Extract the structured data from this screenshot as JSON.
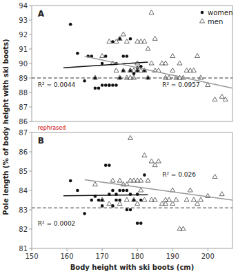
{
  "chart_data": [
    {
      "type": "scatter",
      "ylabel": "Pole length (% of body height with ski boots)",
      "xlim": [
        150,
        207
      ],
      "ylim": [
        86,
        94
      ],
      "yticks": [
        86,
        87,
        88,
        89,
        90,
        91,
        92,
        93,
        94
      ],
      "tick_labels": "y",
      "grid": false,
      "legend": "upper right",
      "series": [
        {
          "name": "women",
          "type": "scatter",
          "marker": "circle",
          "color": "#111111",
          "x": [
            161,
            163,
            165,
            166,
            167,
            168,
            168,
            169,
            170,
            170,
            171,
            171,
            172,
            172,
            173,
            173,
            174,
            174,
            175,
            175,
            176,
            176,
            177,
            178,
            178,
            179,
            180,
            180,
            181,
            182,
            183
          ],
          "values": [
            92.7,
            90.7,
            88.8,
            90.5,
            90.5,
            88.3,
            89.0,
            88.3,
            90.0,
            88.5,
            90.5,
            88.5,
            88.5,
            88.5,
            91.5,
            88.5,
            90.0,
            88.5,
            91.7,
            89.0,
            90.5,
            89.5,
            90.5,
            91.7,
            89.5,
            89.3,
            89.5,
            89.7,
            89.8,
            89.5,
            89.0
          ]
        },
        {
          "name": "men",
          "type": "scatter",
          "marker": "triangle-open",
          "color": "#555555",
          "x": [
            168,
            170,
            172,
            173,
            174,
            174,
            175,
            175,
            176,
            176,
            177,
            177,
            178,
            178,
            178,
            179,
            179,
            180,
            180,
            180,
            181,
            181,
            182,
            182,
            183,
            183,
            184,
            184,
            185,
            185,
            186,
            187,
            188,
            188,
            189,
            190,
            190,
            191,
            192,
            192,
            193,
            194,
            195,
            196,
            197,
            198,
            200,
            202,
            204,
            205
          ],
          "values": [
            89.0,
            90.5,
            91.5,
            90.0,
            91.5,
            89.5,
            91.7,
            89.0,
            92.0,
            89.5,
            91.5,
            89.0,
            89.5,
            89.5,
            89.0,
            89.5,
            89.0,
            91.5,
            90.0,
            89.5,
            91.5,
            89.5,
            91.5,
            89.5,
            91.0,
            89.0,
            93.5,
            90.0,
            91.7,
            89.5,
            89.5,
            90.0,
            90.0,
            89.0,
            89.0,
            90.5,
            89.5,
            89.0,
            90.0,
            89.0,
            89.0,
            89.5,
            89.5,
            89.5,
            90.5,
            89.0,
            88.5,
            87.5,
            87.7,
            87.5
          ]
        },
        {
          "type": "line",
          "color": "#111111",
          "x": [
            159,
            183
          ],
          "values": [
            89.7,
            90.1
          ]
        },
        {
          "type": "line",
          "color": "#999999",
          "x": [
            165,
            207
          ],
          "values": [
            90.5,
            88.3
          ]
        },
        {
          "type": "hline",
          "line_style": "dashed",
          "color": "#333333",
          "values": [
            89.0
          ]
        }
      ],
      "annotations": [
        {
          "text": "R² = 0.0044"
        },
        {
          "text": "R² = 0.0957"
        },
        {
          "text": "A"
        }
      ]
    },
    {
      "type": "scatter",
      "xlabel": "Body height with ski boots (cm)",
      "xlim": [
        150,
        207
      ],
      "xticks": [
        150,
        160,
        170,
        180,
        190,
        200
      ],
      "ylim": [
        81,
        87
      ],
      "yticks": [
        81,
        82,
        83,
        84,
        85,
        86,
        87
      ],
      "grid": false,
      "series": [
        {
          "name": "women",
          "type": "scatter",
          "marker": "circle",
          "color": "#111111",
          "x": [
            161,
            163,
            165,
            167,
            168,
            169,
            170,
            170,
            171,
            172,
            172,
            173,
            173,
            174,
            174,
            175,
            175,
            176,
            177,
            177,
            178,
            178,
            179,
            180,
            180,
            181,
            181,
            182
          ],
          "values": [
            84.5,
            84.0,
            82.8,
            83.5,
            83.7,
            83.5,
            83.5,
            83.2,
            85.3,
            85.3,
            83.8,
            84.0,
            83.2,
            83.8,
            83.5,
            83.5,
            84.0,
            84.0,
            83.0,
            84.0,
            83.8,
            83.0,
            83.5,
            83.8,
            82.3,
            83.5,
            82.3,
            84.8
          ]
        },
        {
          "name": "men",
          "type": "scatter",
          "marker": "triangle-open",
          "color": "#555555",
          "x": [
            168,
            170,
            172,
            173,
            175,
            175,
            176,
            177,
            177,
            178,
            178,
            179,
            179,
            180,
            180,
            181,
            181,
            182,
            182,
            183,
            184,
            184,
            185,
            185,
            186,
            187,
            188,
            188,
            189,
            190,
            190,
            191,
            192,
            193,
            194,
            195,
            196,
            197,
            198,
            200,
            202,
            204
          ],
          "values": [
            84.3,
            83.5,
            83.3,
            84.5,
            84.5,
            83.3,
            84.3,
            84.3,
            83.5,
            86.7,
            84.5,
            84.5,
            83.5,
            84.5,
            83.3,
            84.5,
            84.0,
            85.8,
            83.5,
            84.5,
            85.5,
            83.5,
            85.3,
            83.5,
            85.5,
            83.3,
            83.5,
            83.3,
            83.5,
            84.0,
            83.3,
            83.5,
            82.0,
            82.0,
            83.5,
            84.0,
            83.5,
            83.3,
            83.5,
            83.7,
            84.7,
            83.8
          ]
        },
        {
          "type": "line",
          "color": "#111111",
          "x": [
            159,
            183
          ],
          "values": [
            83.72,
            83.78
          ]
        },
        {
          "type": "line",
          "color": "#999999",
          "x": [
            165,
            207
          ],
          "values": [
            84.55,
            83.5
          ]
        },
        {
          "type": "hline",
          "line_style": "dashed",
          "color": "#333333",
          "values": [
            83.1
          ]
        }
      ],
      "annotations": [
        {
          "text": "R² = 0.0002"
        },
        {
          "text": "R² = 0.026"
        },
        {
          "text": "B"
        },
        {
          "text": "rephrased",
          "color": "#cc0000"
        }
      ]
    }
  ]
}
